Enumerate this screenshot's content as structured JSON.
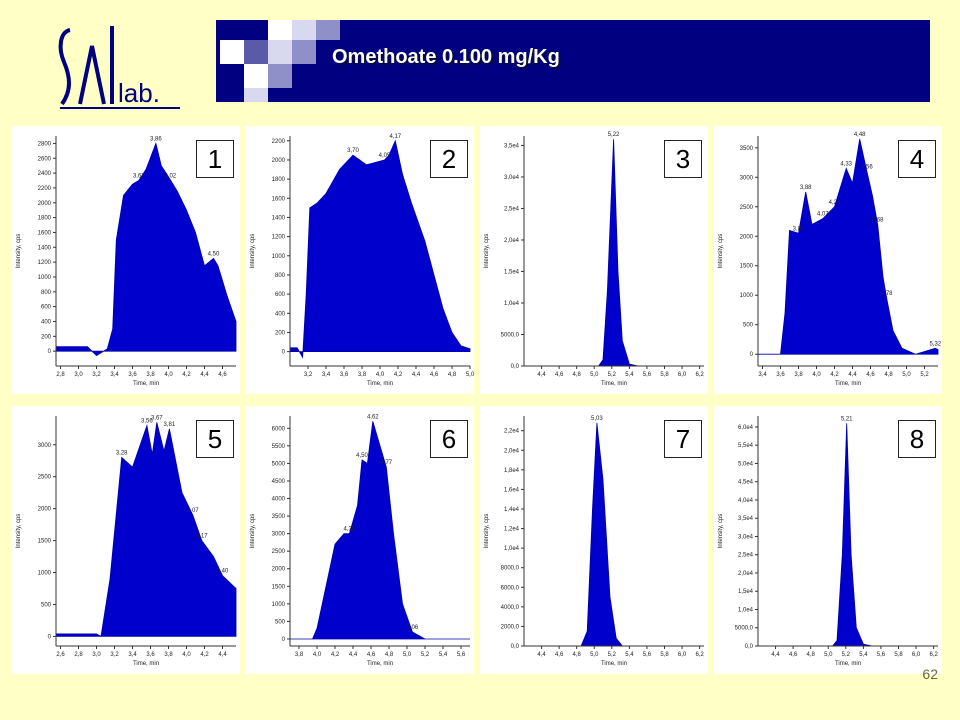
{
  "header": {
    "title": "Omethoate 0.100 mg/Kg",
    "logo_text": "SAL lab."
  },
  "page_number": "62",
  "colors": {
    "background": "#FFFFC6",
    "header": "#000080",
    "fill": "#0000CC"
  },
  "chart_data": [
    {
      "type": "area",
      "badge": "1",
      "xlabel": "Time, min",
      "ylabel": "Intensity, cps",
      "xlim": [
        2.75,
        4.75
      ],
      "ylim": [
        -200,
        2900
      ],
      "xticks": [
        "2,8",
        "3,0",
        "3,2",
        "3,4",
        "3,6",
        "3,8",
        "4,0",
        "4,2",
        "4,4",
        "4,6"
      ],
      "yticks": [
        "0",
        "200",
        "400",
        "600",
        "800",
        "1000",
        "1200",
        "1400",
        "1600",
        "1800",
        "2000",
        "2200",
        "2400",
        "2600",
        "2800"
      ],
      "x": [
        2.75,
        3.1,
        3.2,
        3.32,
        3.38,
        3.42,
        3.5,
        3.6,
        3.67,
        3.75,
        3.86,
        3.92,
        4.0,
        4.1,
        4.2,
        4.3,
        4.4,
        4.5,
        4.55,
        4.65,
        4.75
      ],
      "y": [
        60,
        60,
        -60,
        30,
        300,
        1500,
        2100,
        2250,
        2300,
        2450,
        2800,
        2500,
        2350,
        2150,
        1900,
        1600,
        1150,
        1250,
        1150,
        750,
        400
      ],
      "annotations": [
        {
          "label": "3,67",
          "x": 3.67,
          "y": 2300
        },
        {
          "label": "3,86",
          "x": 3.86,
          "y": 2800
        },
        {
          "label": "4,02",
          "x": 4.02,
          "y": 2300
        },
        {
          "label": "4,50",
          "x": 4.5,
          "y": 1250
        }
      ]
    },
    {
      "type": "area",
      "badge": "2",
      "xlabel": "Time, min",
      "ylabel": "Intensity, cps",
      "xlim": [
        3.0,
        5.0
      ],
      "ylim": [
        -150,
        2250
      ],
      "xticks": [
        "3,2",
        "3,4",
        "3,6",
        "3,8",
        "4,0",
        "4,2",
        "4,4",
        "4,6",
        "4,8",
        "5,0"
      ],
      "yticks": [
        "0",
        "200",
        "400",
        "600",
        "800",
        "1000",
        "1200",
        "1400",
        "1600",
        "1800",
        "2000",
        "2200"
      ],
      "x": [
        3.0,
        3.08,
        3.14,
        3.18,
        3.22,
        3.3,
        3.4,
        3.55,
        3.7,
        3.85,
        4.05,
        4.1,
        4.17,
        4.25,
        4.35,
        4.5,
        4.6,
        4.7,
        4.8,
        4.9,
        5.0
      ],
      "y": [
        40,
        40,
        -60,
        600,
        1500,
        1550,
        1650,
        1900,
        2050,
        1950,
        2000,
        2050,
        2200,
        1850,
        1550,
        1150,
        800,
        450,
        200,
        60,
        30
      ],
      "annotations": [
        {
          "label": "3,70",
          "x": 3.7,
          "y": 2050
        },
        {
          "label": "4,05",
          "x": 4.05,
          "y": 2000
        },
        {
          "label": "4,17",
          "x": 4.17,
          "y": 2200
        }
      ]
    },
    {
      "type": "area",
      "badge": "3",
      "xlabel": "Time, min",
      "ylabel": "Intensity, cps",
      "xlim": [
        4.2,
        6.25
      ],
      "ylim": [
        0,
        36500
      ],
      "xticks": [
        "4,4",
        "4,6",
        "4,8",
        "5,0",
        "5,2",
        "5,4",
        "5,6",
        "5,8",
        "6,0",
        "6,2"
      ],
      "yticks": [
        "0,0",
        "5000,0",
        "1,0e4",
        "1,5e4",
        "2,0e4",
        "2,5e4",
        "3,0e4",
        "3,5e4"
      ],
      "x": [
        4.2,
        5.05,
        5.1,
        5.15,
        5.22,
        5.27,
        5.32,
        5.4,
        5.5,
        6.25
      ],
      "y": [
        0,
        0,
        1000,
        12000,
        36000,
        15000,
        4000,
        300,
        0,
        0
      ],
      "annotations": [
        {
          "label": "5,22",
          "x": 5.22,
          "y": 36000
        }
      ]
    },
    {
      "type": "area",
      "badge": "4",
      "xlabel": "Time, min",
      "ylabel": "Intensity, cps",
      "xlim": [
        3.35,
        5.35
      ],
      "ylim": [
        -200,
        3700
      ],
      "xticks": [
        "3,4",
        "3,6",
        "3,8",
        "4,0",
        "4,2",
        "4,4",
        "4,6",
        "4,8",
        "5,0",
        "5,2"
      ],
      "yticks": [
        "0",
        "500",
        "1000",
        "1500",
        "2000",
        "2500",
        "3000",
        "3500"
      ],
      "x": [
        3.35,
        3.6,
        3.65,
        3.7,
        3.8,
        3.88,
        3.95,
        4.07,
        4.2,
        4.33,
        4.4,
        4.48,
        4.56,
        4.62,
        4.68,
        4.74,
        4.78,
        4.85,
        4.95,
        5.1,
        5.32,
        5.35
      ],
      "y": [
        0,
        0,
        700,
        2100,
        2050,
        2750,
        2200,
        2300,
        2500,
        3150,
        2900,
        3650,
        3100,
        2700,
        2200,
        1300,
        950,
        400,
        100,
        0,
        100,
        80
      ],
      "annotations": [
        {
          "label": "3,80",
          "x": 3.8,
          "y": 2050
        },
        {
          "label": "3,88",
          "x": 3.88,
          "y": 2750
        },
        {
          "label": "4,07",
          "x": 4.07,
          "y": 2300
        },
        {
          "label": "4,20",
          "x": 4.2,
          "y": 2500
        },
        {
          "label": "4,33",
          "x": 4.33,
          "y": 3150
        },
        {
          "label": "4,48",
          "x": 4.48,
          "y": 3650
        },
        {
          "label": "4,56",
          "x": 4.56,
          "y": 3100
        },
        {
          "label": "4,68",
          "x": 4.68,
          "y": 2200
        },
        {
          "label": "4,78",
          "x": 4.78,
          "y": 950
        },
        {
          "label": "5,32",
          "x": 5.32,
          "y": 100
        }
      ]
    },
    {
      "type": "area",
      "badge": "5",
      "xlabel": "Time, min",
      "ylabel": "Intensity, cps",
      "xlim": [
        2.55,
        4.55
      ],
      "ylim": [
        -150,
        3450
      ],
      "xticks": [
        "2,6",
        "2,8",
        "3,0",
        "3,2",
        "3,4",
        "3,6",
        "3,8",
        "4,0",
        "4,2",
        "4,4"
      ],
      "yticks": [
        "0",
        "500",
        "1000",
        "1500",
        "2000",
        "2500",
        "3000"
      ],
      "x": [
        2.55,
        3.0,
        3.05,
        3.15,
        3.28,
        3.4,
        3.56,
        3.62,
        3.67,
        3.75,
        3.81,
        3.95,
        4.07,
        4.17,
        4.3,
        4.4,
        4.55
      ],
      "y": [
        40,
        40,
        0,
        900,
        2800,
        2650,
        3300,
        2850,
        3350,
        2900,
        3250,
        2250,
        1900,
        1500,
        1250,
        950,
        750
      ],
      "annotations": [
        {
          "label": "3,28",
          "x": 3.28,
          "y": 2800
        },
        {
          "label": "3,56",
          "x": 3.56,
          "y": 3300
        },
        {
          "label": "3,67",
          "x": 3.67,
          "y": 3350
        },
        {
          "label": "3,81",
          "x": 3.81,
          "y": 3250
        },
        {
          "label": "4,07",
          "x": 4.07,
          "y": 1900
        },
        {
          "label": "4,17",
          "x": 4.17,
          "y": 1500
        },
        {
          "label": "4,40",
          "x": 4.4,
          "y": 950
        }
      ]
    },
    {
      "type": "area",
      "badge": "6",
      "xlabel": "Time, min",
      "ylabel": "Intensity, cps",
      "xlim": [
        3.7,
        5.7
      ],
      "ylim": [
        -200,
        6350
      ],
      "xticks": [
        "3,8",
        "4,0",
        "4,2",
        "4,4",
        "4,6",
        "4,8",
        "5,0",
        "5,2",
        "5,4",
        "5,6"
      ],
      "yticks": [
        "0",
        "500",
        "1000",
        "1500",
        "2000",
        "2500",
        "3000",
        "3500",
        "4000",
        "4500",
        "5000",
        "5500",
        "6000"
      ],
      "x": [
        3.7,
        3.95,
        4.0,
        4.1,
        4.2,
        4.3,
        4.36,
        4.45,
        4.5,
        4.56,
        4.62,
        4.7,
        4.77,
        4.85,
        4.95,
        5.06,
        5.2,
        5.7
      ],
      "y": [
        0,
        0,
        300,
        1500,
        2700,
        3000,
        3000,
        3800,
        5100,
        5000,
        6200,
        5500,
        4900,
        3000,
        1000,
        200,
        0,
        0
      ],
      "annotations": [
        {
          "label": "4,36",
          "x": 4.36,
          "y": 3000
        },
        {
          "label": "4,50",
          "x": 4.5,
          "y": 5100
        },
        {
          "label": "4,62",
          "x": 4.62,
          "y": 6200
        },
        {
          "label": "4,77",
          "x": 4.77,
          "y": 4900
        },
        {
          "label": "5,06",
          "x": 5.06,
          "y": 200
        }
      ]
    },
    {
      "type": "area",
      "badge": "7",
      "xlabel": "Time, min",
      "ylabel": "Intensity, cps",
      "xlim": [
        4.2,
        6.25
      ],
      "ylim": [
        0,
        23500
      ],
      "xticks": [
        "4,4",
        "4,6",
        "4,8",
        "5,0",
        "5,2",
        "5,4",
        "5,6",
        "5,8",
        "6,0",
        "6,2"
      ],
      "yticks": [
        "0,0",
        "2000,0",
        "4000,0",
        "6000,0",
        "8000,0",
        "1,0e4",
        "1,2e4",
        "1,4e4",
        "1,6e4",
        "1,8e4",
        "2,0e4",
        "2,2e4"
      ],
      "x": [
        4.2,
        4.85,
        4.92,
        4.98,
        5.03,
        5.1,
        5.18,
        5.25,
        5.32,
        6.25
      ],
      "y": [
        0,
        0,
        1500,
        14000,
        22800,
        17000,
        5000,
        800,
        0,
        0
      ],
      "annotations": [
        {
          "label": "5,03",
          "x": 5.03,
          "y": 22800
        }
      ]
    },
    {
      "type": "area",
      "badge": "8",
      "xlabel": "Time, min",
      "ylabel": "Intensity, cps",
      "xlim": [
        4.2,
        6.25
      ],
      "ylim": [
        0,
        63000
      ],
      "xticks": [
        "4,4",
        "4,6",
        "4,8",
        "5,0",
        "5,2",
        "5,4",
        "5,6",
        "5,8",
        "6,0",
        "6,2"
      ],
      "yticks": [
        "0,0",
        "5000,0",
        "1,0e4",
        "1,5e4",
        "2,0e4",
        "2,5e4",
        "3,0e4",
        "3,5e4",
        "4,0e4",
        "4,5e4",
        "5,0e4",
        "5,5e4",
        "6,0e4"
      ],
      "x": [
        4.2,
        5.05,
        5.1,
        5.16,
        5.21,
        5.26,
        5.32,
        5.4,
        5.5,
        6.25
      ],
      "y": [
        0,
        0,
        1500,
        25000,
        61000,
        25000,
        5000,
        500,
        0,
        0
      ],
      "annotations": [
        {
          "label": "5,21",
          "x": 5.21,
          "y": 61000
        }
      ]
    }
  ]
}
